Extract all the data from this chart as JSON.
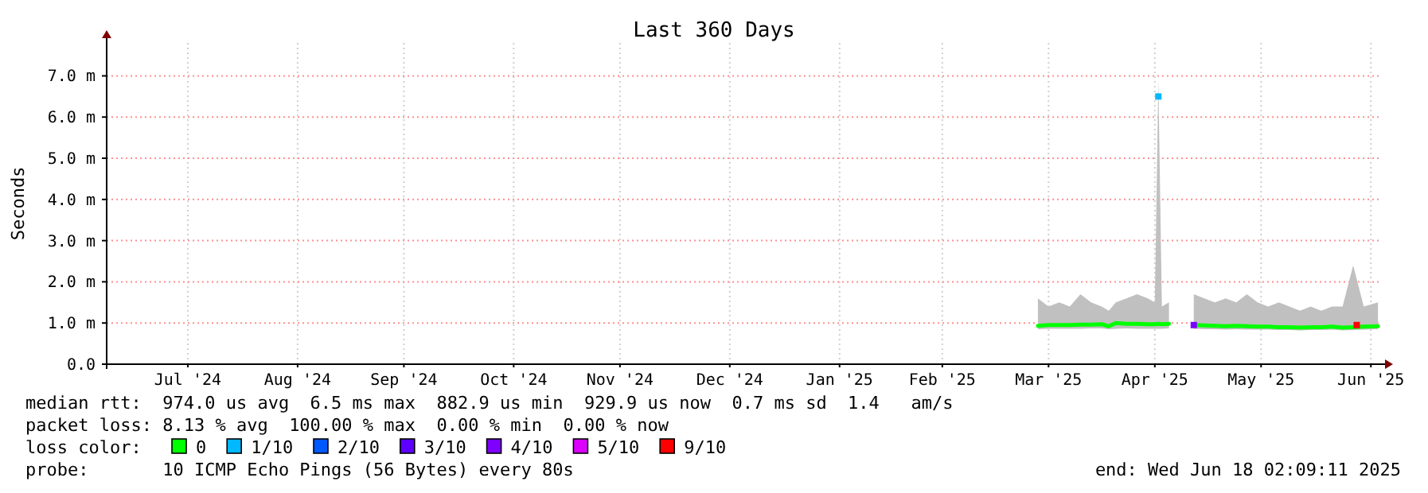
{
  "chart_data": {
    "type": "line",
    "title": "Last 360 Days",
    "ylabel": "Seconds",
    "xlim": [
      "2024-06-23T02:09",
      "2025-06-18T02:09"
    ],
    "xticks": [
      {
        "value": "2024-07-16",
        "label": "Jul '24"
      },
      {
        "value": "2024-08-16",
        "label": "Aug '24"
      },
      {
        "value": "2024-09-15",
        "label": "Sep '24"
      },
      {
        "value": "2024-10-16",
        "label": "Oct '24"
      },
      {
        "value": "2024-11-15",
        "label": "Nov '24"
      },
      {
        "value": "2024-12-16",
        "label": "Dec '24"
      },
      {
        "value": "2025-01-16",
        "label": "Jan '25"
      },
      {
        "value": "2025-02-14",
        "label": "Feb '25"
      },
      {
        "value": "2025-03-16",
        "label": "Mar '25"
      },
      {
        "value": "2025-04-15",
        "label": "Apr '25"
      },
      {
        "value": "2025-05-15",
        "label": "May '25"
      },
      {
        "value": "2025-06-15",
        "label": "Jun '25"
      }
    ],
    "ylim": [
      0,
      7.8
    ],
    "yticks": [
      {
        "value": 0,
        "label": "0.0"
      },
      {
        "value": 1,
        "label": "1.0 m"
      },
      {
        "value": 2,
        "label": "2.0 m"
      },
      {
        "value": 3,
        "label": "3.0 m"
      },
      {
        "value": 4,
        "label": "4.0 m"
      },
      {
        "value": 5,
        "label": "5.0 m"
      },
      {
        "value": 6,
        "label": "6.0 m"
      },
      {
        "value": 7,
        "label": "7.0 m"
      }
    ],
    "grid": true,
    "legend": "bottom",
    "legend_title": "loss color:",
    "line_style": "solid",
    "series": [
      {
        "name": "0",
        "color": "#00ff00",
        "x": [
          "2025-03-13",
          "2025-03-16",
          "2025-03-19",
          "2025-03-22",
          "2025-03-25",
          "2025-03-28",
          "2025-03-31",
          "2025-04-02",
          "2025-04-04",
          "2025-04-07",
          "2025-04-10",
          "2025-04-13",
          "2025-04-15",
          "2025-04-16",
          "2025-04-17",
          "2025-04-19",
          "2025-04-22",
          "2025-04-26",
          "2025-04-29",
          "2025-05-02",
          "2025-05-05",
          "2025-05-08",
          "2025-05-11",
          "2025-05-14",
          "2025-05-17",
          "2025-05-20",
          "2025-05-23",
          "2025-05-26",
          "2025-05-29",
          "2025-06-01",
          "2025-06-04",
          "2025-06-07",
          "2025-06-10",
          "2025-06-13",
          "2025-06-17"
        ],
        "values": [
          0.93,
          0.95,
          0.95,
          0.95,
          0.96,
          0.96,
          0.97,
          0.92,
          1.0,
          0.98,
          0.98,
          0.97,
          0.97,
          0.98,
          0.97,
          0.98,
          null,
          0.95,
          0.94,
          0.93,
          0.92,
          0.93,
          0.92,
          0.91,
          0.91,
          0.9,
          0.9,
          0.89,
          0.9,
          0.9,
          0.91,
          0.89,
          0.9,
          0.91,
          0.92
        ],
        "lower": [
          0.85,
          0.86,
          0.86,
          0.86,
          0.86,
          0.87,
          0.87,
          0.85,
          0.86,
          0.87,
          0.86,
          0.86,
          0.86,
          0.86,
          0.86,
          0.87,
          null,
          0.86,
          0.85,
          0.85,
          0.84,
          0.85,
          0.84,
          0.84,
          0.84,
          0.83,
          0.83,
          0.82,
          0.83,
          0.83,
          0.84,
          0.82,
          0.83,
          0.84,
          0.85
        ],
        "upper": [
          1.6,
          1.4,
          1.5,
          1.4,
          1.7,
          1.5,
          1.4,
          1.3,
          1.5,
          1.6,
          1.7,
          1.6,
          1.5,
          6.9,
          1.4,
          1.5,
          null,
          1.7,
          1.6,
          1.5,
          1.6,
          1.5,
          1.7,
          1.5,
          1.4,
          1.5,
          1.4,
          1.3,
          1.4,
          1.3,
          1.4,
          1.4,
          2.4,
          1.4,
          1.5
        ]
      },
      {
        "name": "1/10",
        "color": "#00b8ff",
        "type": "scatter",
        "marker": "square",
        "x": [
          "2025-04-16"
        ],
        "values": [
          6.5
        ]
      },
      {
        "name": "2/10",
        "color": "#0059ff",
        "type": "scatter"
      },
      {
        "name": "3/10",
        "color": "#5e00ff",
        "type": "scatter"
      },
      {
        "name": "4/10",
        "color": "#7e00ff",
        "type": "scatter",
        "marker": "square",
        "x": [
          "2025-04-26"
        ],
        "values": [
          0.95
        ]
      },
      {
        "name": "5/10",
        "color": "#dd00ff",
        "type": "scatter"
      },
      {
        "name": "9/10",
        "color": "#ff0000",
        "type": "scatter",
        "marker": "square",
        "x": [
          "2025-06-11"
        ],
        "values": [
          0.95
        ]
      }
    ],
    "annotations": [
      "median rtt:  974.0 us avg  6.5 ms max  882.9 us min  929.9 us now  0.7 ms sd  1.4   am/s",
      "packet loss: 8.13 % avg  100.00 % max  0.00 % min  0.00 % now",
      "probe:       10 ICMP Echo Pings (56 Bytes) every 80s",
      "end: Wed Jun 18 02:09:11 2025"
    ]
  }
}
